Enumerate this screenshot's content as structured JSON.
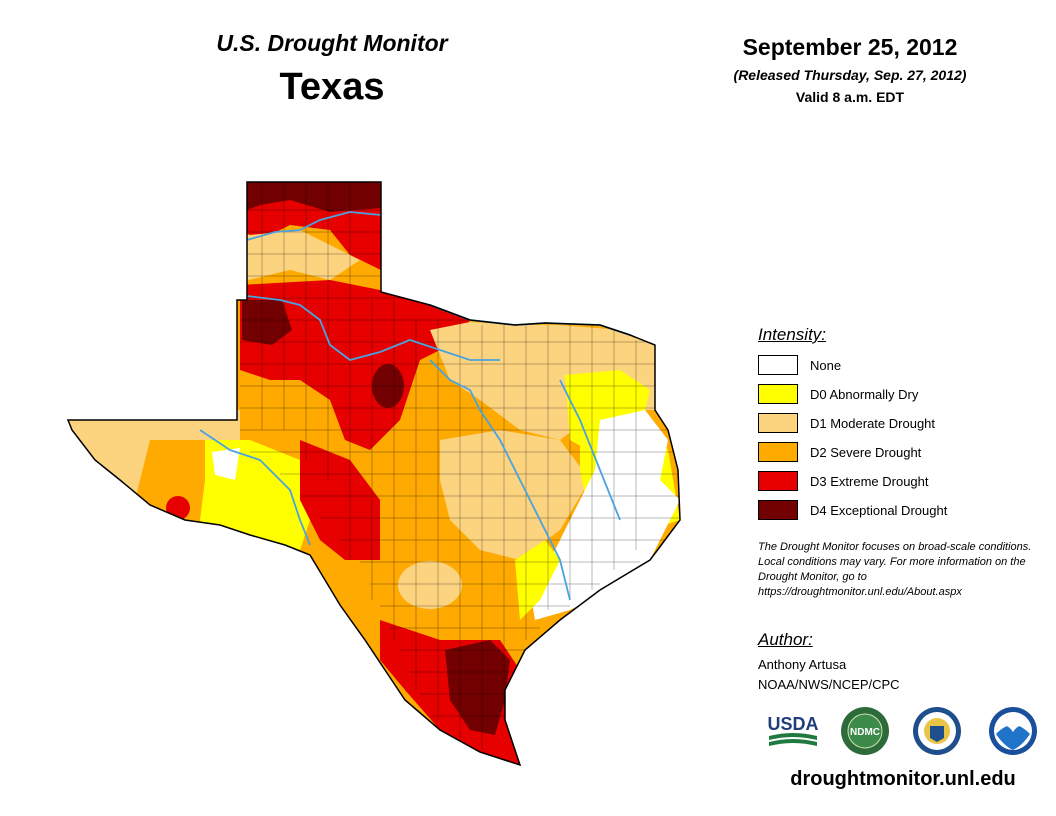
{
  "header": {
    "product": "U.S. Drought Monitor",
    "region": "Texas",
    "date": "September 25, 2012",
    "released": "(Released Thursday, Sep. 27, 2012)",
    "valid": "Valid 8 a.m. EDT"
  },
  "legend": {
    "title": "Intensity:",
    "items": [
      {
        "label": "None",
        "color": "#ffffff"
      },
      {
        "label": "D0 Abnormally Dry",
        "color": "#ffff00"
      },
      {
        "label": "D1 Moderate Drought",
        "color": "#fcd37f"
      },
      {
        "label": "D2 Severe Drought",
        "color": "#ffaa00"
      },
      {
        "label": "D3 Extreme Drought",
        "color": "#e60000"
      },
      {
        "label": "D4 Exceptional Drought",
        "color": "#730000"
      }
    ]
  },
  "note": "The Drought Monitor focuses on broad-scale conditions. Local conditions may vary. For more information on the Drought Monitor, go to https://droughtmonitor.unl.edu/About.aspx",
  "author": {
    "title": "Author:",
    "name": "Anthony Artusa",
    "org": "NOAA/NWS/NCEP/CPC"
  },
  "logos": {
    "usda": "USDA",
    "ndmc": "NDMC"
  },
  "website": "droughtmonitor.unl.edu",
  "colors": {
    "river": "#4aa3df",
    "county_line": "#000000"
  }
}
